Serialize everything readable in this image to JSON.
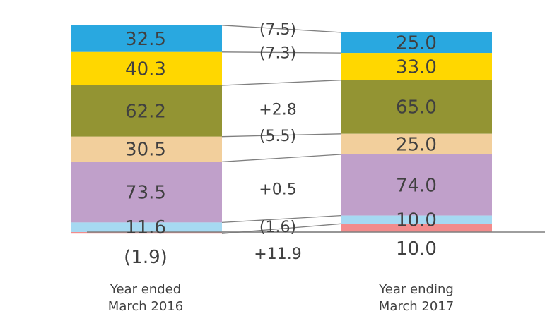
{
  "chart_data": {
    "type": "bar",
    "subtype": "stacked-bridge",
    "categories": [
      "Year ended\nMarch 2016",
      "Year ending\nMarch 2017"
    ],
    "segments": [
      {
        "key": "s1",
        "color": "#29A8E0",
        "values": [
          32.5,
          25.0
        ],
        "labels": [
          "32.5",
          "25.0"
        ],
        "change": "(7.5)"
      },
      {
        "key": "s2",
        "color": "#FFD700",
        "values": [
          40.3,
          33.0
        ],
        "labels": [
          "40.3",
          "33.0"
        ],
        "change": "(7.3)"
      },
      {
        "key": "s3",
        "color": "#939433",
        "values": [
          62.2,
          65.0
        ],
        "labels": [
          "62.2",
          "65.0"
        ],
        "change": "+2.8"
      },
      {
        "key": "s4",
        "color": "#F2CF9C",
        "values": [
          30.5,
          25.0
        ],
        "labels": [
          "30.5",
          "25.0"
        ],
        "change": "(5.5)"
      },
      {
        "key": "s5",
        "color": "#C0A0CA",
        "values": [
          73.5,
          74.0
        ],
        "labels": [
          "73.5",
          "74.0"
        ],
        "change": "+0.5"
      },
      {
        "key": "s6",
        "color": "#A6D9F2",
        "values": [
          11.6,
          10.0
        ],
        "labels": [
          "11.6",
          "10.0"
        ],
        "change": "(1.6)"
      },
      {
        "key": "s7",
        "color": "#F28C8C",
        "values": [
          -1.9,
          10.0
        ],
        "labels": [
          "(1.9)",
          "10.0"
        ],
        "change": "+11.9"
      }
    ],
    "connector_color": "#7f7f7f",
    "axis_color": "#7f7f7f"
  }
}
